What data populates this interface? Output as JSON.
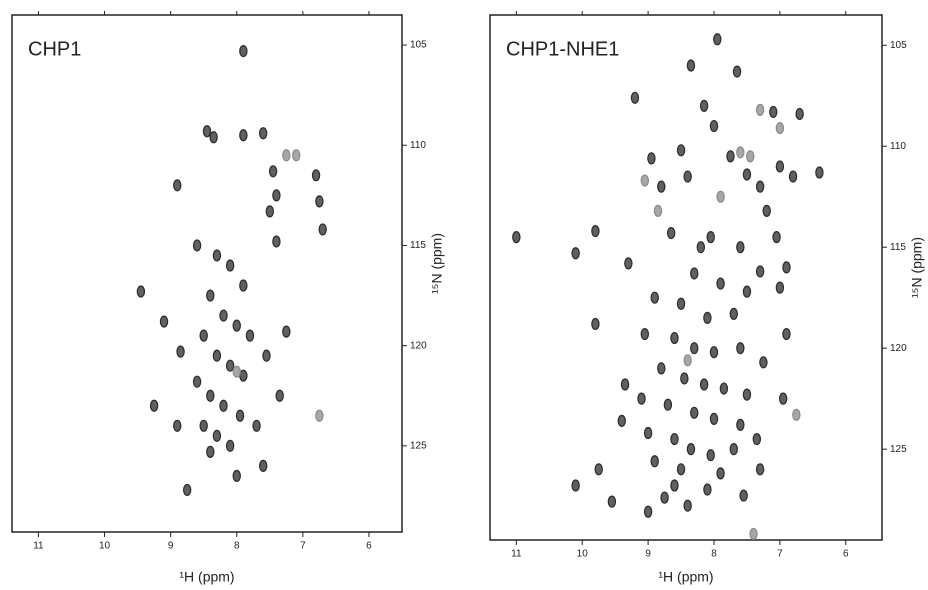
{
  "chart_data": [
    {
      "type": "scatter",
      "title": "CHP1",
      "x_label": "¹H (ppm)",
      "y_label": "¹⁵N (ppm)",
      "xlim": [
        11.4,
        5.5
      ],
      "ylim": [
        129.3,
        103.5
      ],
      "xticks": [
        11,
        10,
        9,
        8,
        7,
        6
      ],
      "yticks": [
        105,
        110,
        115,
        120,
        125
      ],
      "series": [
        {
          "color": "#2b2b2b",
          "x": [
            8.45,
            8.35,
            7.9,
            7.6,
            7.45,
            7.4,
            7.5,
            6.8,
            6.75,
            6.7,
            8.9,
            9.45,
            9.1,
            8.6,
            8.3,
            8.1,
            7.9,
            8.4,
            8.2,
            8.0,
            7.8,
            8.5,
            8.3,
            8.1,
            7.9,
            8.6,
            8.4,
            8.2,
            7.95,
            8.5,
            8.3,
            8.1,
            8.4,
            7.7,
            7.35,
            7.55,
            8.9,
            8.75,
            8.0,
            7.6,
            8.85,
            9.25,
            7.9,
            7.25,
            7.4
          ],
          "values": [
            109.3,
            109.6,
            109.5,
            109.4,
            111.3,
            112.5,
            113.3,
            111.5,
            112.8,
            114.2,
            112,
            117.3,
            118.8,
            115,
            115.5,
            116,
            117,
            117.5,
            118.5,
            119,
            119.5,
            119.5,
            120.5,
            121,
            121.5,
            121.8,
            122.5,
            123,
            123.5,
            124,
            124.5,
            125,
            125.3,
            124,
            122.5,
            120.5,
            124,
            127.2,
            126.5,
            126,
            120.3,
            123,
            105.3,
            119.3,
            114.8
          ]
        },
        {
          "color": "#8a8a8a",
          "x": [
            7.25,
            7.1,
            6.75,
            8.0
          ],
          "values": [
            110.5,
            110.5,
            123.5,
            121.3
          ]
        }
      ]
    },
    {
      "type": "scatter",
      "title": "CHP1-NHE1",
      "x_label": "¹H (ppm)",
      "y_label": "¹⁵N (ppm)",
      "xlim": [
        11.4,
        5.45
      ],
      "ylim": [
        129.5,
        103.5
      ],
      "xticks": [
        11,
        10,
        9,
        8,
        7,
        6
      ],
      "yticks": [
        105,
        110,
        115,
        120,
        125
      ],
      "series": [
        {
          "color": "#2b2b2b",
          "x": [
            7.95,
            8.35,
            7.65,
            9.2,
            8.15,
            8.0,
            7.1,
            6.7,
            8.95,
            8.5,
            7.75,
            8.8,
            8.4,
            7.5,
            7.3,
            7.0,
            6.8,
            6.4,
            7.2,
            7.05,
            11.0,
            9.8,
            8.65,
            8.2,
            8.05,
            7.6,
            7.3,
            10.1,
            9.3,
            8.3,
            7.9,
            7.5,
            7.0,
            6.9,
            8.9,
            8.5,
            8.1,
            7.7,
            9.8,
            9.05,
            8.6,
            8.3,
            8.0,
            7.6,
            7.25,
            6.9,
            8.8,
            8.45,
            8.15,
            7.85,
            7.5,
            9.35,
            9.1,
            8.7,
            8.3,
            8.0,
            7.6,
            9.4,
            9.0,
            8.6,
            8.35,
            8.05,
            7.7,
            7.35,
            8.9,
            8.5,
            7.9,
            7.3,
            9.75,
            10.1,
            9.55,
            8.75,
            8.6,
            8.1,
            7.55,
            9.0,
            8.4,
            6.95
          ],
          "values": [
            104.7,
            106,
            106.3,
            107.6,
            108,
            109,
            108.3,
            108.4,
            110.6,
            110.2,
            110.5,
            112,
            111.5,
            111.4,
            112,
            111,
            111.5,
            111.3,
            113.2,
            114.5,
            114.5,
            114.2,
            114.3,
            115,
            114.5,
            115,
            116.2,
            115.3,
            115.8,
            116.3,
            116.8,
            117.2,
            117,
            116,
            117.5,
            117.8,
            118.5,
            118.3,
            118.8,
            119.3,
            119.5,
            120,
            120.2,
            120,
            120.7,
            119.3,
            121,
            121.5,
            121.8,
            122,
            122.3,
            121.8,
            122.5,
            122.8,
            123.2,
            123.5,
            123.8,
            123.6,
            124.2,
            124.5,
            125,
            125.3,
            125,
            124.5,
            125.6,
            126,
            126.2,
            126,
            126,
            126.8,
            127.6,
            127.4,
            126.8,
            127,
            127.3,
            128.1,
            127.8,
            122.5
          ]
        },
        {
          "color": "#8a8a8a",
          "x": [
            7.3,
            7.0,
            7.6,
            7.45,
            9.05,
            8.85,
            7.9,
            8.4,
            6.75,
            7.4
          ],
          "values": [
            108.2,
            109.1,
            110.3,
            110.5,
            111.7,
            113.2,
            112.5,
            120.6,
            123.3,
            129.2
          ]
        }
      ]
    }
  ]
}
